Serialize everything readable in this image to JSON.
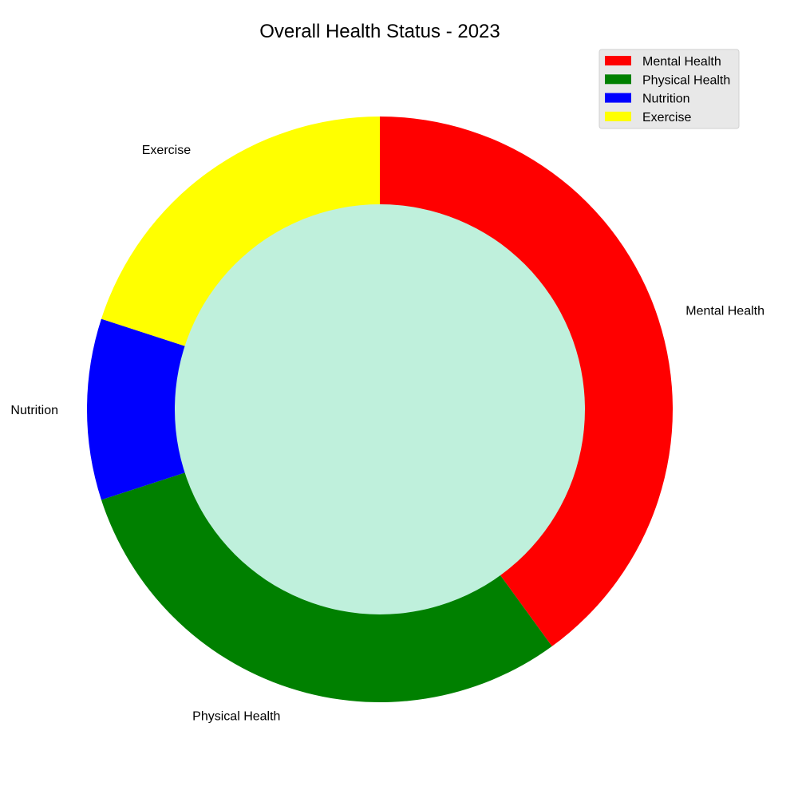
{
  "chart_data": {
    "type": "pie",
    "title": "Overall Health Status - 2023",
    "categories": [
      "Mental Health",
      "Physical Health",
      "Nutrition",
      "Exercise"
    ],
    "values": [
      40,
      30,
      10,
      20
    ],
    "colors": [
      "#ff0000",
      "#008000",
      "#0000ff",
      "#ffff00"
    ],
    "center_color": "#bff0dc",
    "legend": {
      "position": "top-right",
      "entries": [
        "Mental Health",
        "Physical Health",
        "Nutrition",
        "Exercise"
      ]
    },
    "donut": true
  }
}
